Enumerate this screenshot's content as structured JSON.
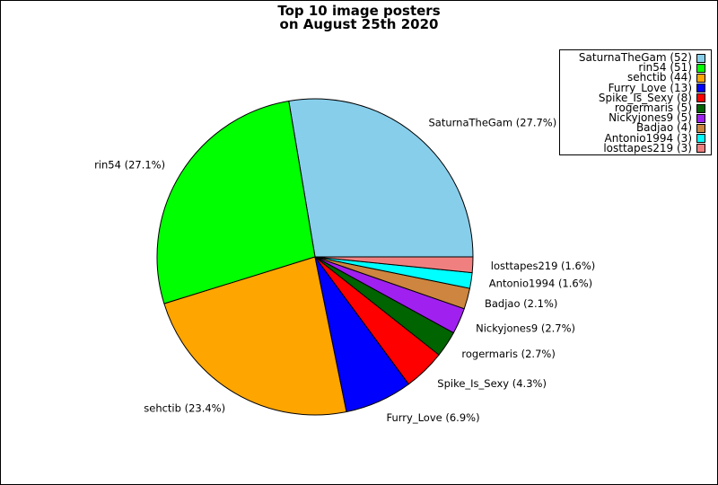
{
  "chart_data": {
    "type": "pie",
    "title_line1": "Top 10 image posters",
    "title_line2": "on August 25th 2020",
    "slices": [
      {
        "name": "SaturnaTheGam",
        "value": 52,
        "percent_label": "SaturnaTheGam (27.7%)",
        "legend_label": "SaturnaTheGam (52)",
        "color": "#87ceeb"
      },
      {
        "name": "rin54",
        "value": 51,
        "percent_label": "rin54 (27.1%)",
        "legend_label": "rin54 (51)",
        "color": "#00ff00"
      },
      {
        "name": "sehctib",
        "value": 44,
        "percent_label": "sehctib (23.4%)",
        "legend_label": "sehctib (44)",
        "color": "#ffa500"
      },
      {
        "name": "Furry_Love",
        "value": 13,
        "percent_label": "Furry_Love (6.9%)",
        "legend_label": "Furry_Love (13)",
        "color": "#0000ff"
      },
      {
        "name": "Spike_Is_Sexy",
        "value": 8,
        "percent_label": "Spike_Is_Sexy (4.3%)",
        "legend_label": "Spike_Is_Sexy (8)",
        "color": "#ff0000"
      },
      {
        "name": "rogermaris",
        "value": 5,
        "percent_label": "rogermaris (2.7%)",
        "legend_label": "rogermaris (5)",
        "color": "#006400"
      },
      {
        "name": "Nickyjones9",
        "value": 5,
        "percent_label": "Nickyjones9 (2.7%)",
        "legend_label": "Nickyjones9 (5)",
        "color": "#a020f0"
      },
      {
        "name": "Badjao",
        "value": 4,
        "percent_label": "Badjao (2.1%)",
        "legend_label": "Badjao (4)",
        "color": "#cd853f"
      },
      {
        "name": "Antonio1994",
        "value": 3,
        "percent_label": "Antonio1994 (1.6%)",
        "legend_label": "Antonio1994 (3)",
        "color": "#00ffff"
      },
      {
        "name": "losttapes219",
        "value": 3,
        "percent_label": "losttapes219 (1.6%)",
        "legend_label": "losttapes219 (3)",
        "color": "#f08080"
      }
    ],
    "legend_placement": "top-right",
    "start_angle_deg": 0,
    "direction": "counterclockwise"
  }
}
